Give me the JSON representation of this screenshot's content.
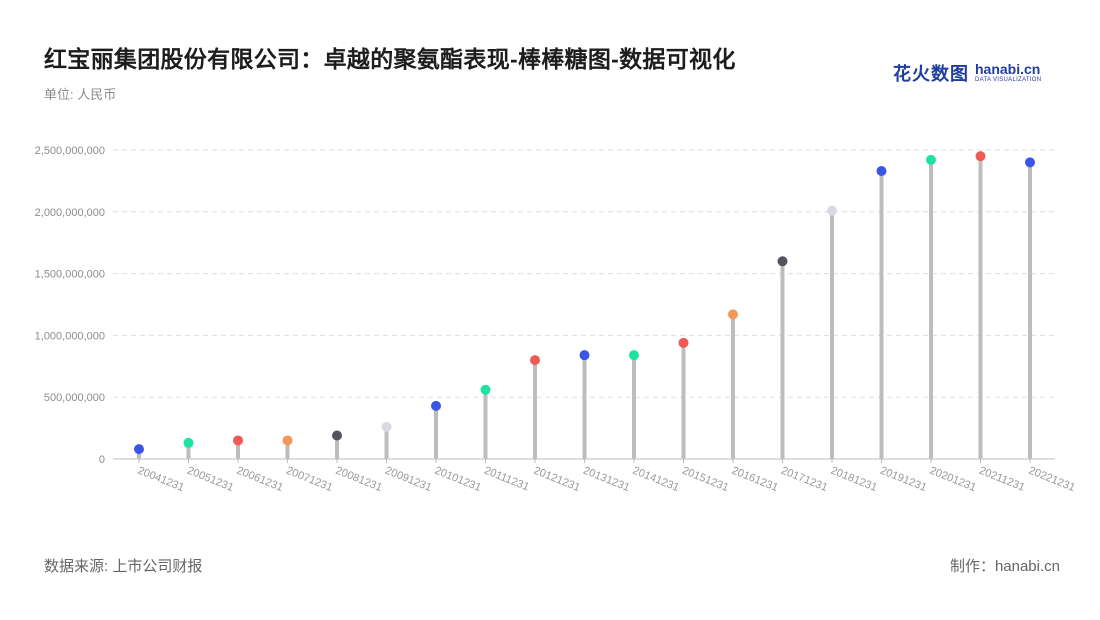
{
  "header": {
    "title": "红宝丽集团股份有限公司：卓越的聚氨酯表现-棒棒糖图-数据可视化",
    "unit": "单位: 人民币"
  },
  "logo": {
    "cn": "花火数图",
    "en": "hanabi.cn",
    "en_sub": "DATA VISUALIZATION"
  },
  "footer": {
    "source": "数据来源: 上市公司财报",
    "credit": "制作：hanabi.cn"
  },
  "chart_data": {
    "type": "lollipop",
    "categories": [
      "20041231",
      "20051231",
      "20061231",
      "20071231",
      "20081231",
      "20091231",
      "20101231",
      "20111231",
      "20121231",
      "20131231",
      "20141231",
      "20151231",
      "20161231",
      "20171231",
      "20181231",
      "20191231",
      "20201231",
      "20211231",
      "20221231"
    ],
    "values": [
      80000000,
      130000000,
      150000000,
      150000000,
      190000000,
      260000000,
      430000000,
      560000000,
      800000000,
      840000000,
      840000000,
      940000000,
      1170000000,
      1600000000,
      2010000000,
      2330000000,
      2420000000,
      2450000000,
      2400000000
    ],
    "point_colors": [
      "#3b55e6",
      "#1ee3a0",
      "#ef5a54",
      "#f4975a",
      "#54545e",
      "#d9dae6",
      "#3b55e6",
      "#1ee3a0",
      "#ef5a54",
      "#3b55e6",
      "#1ee3a0",
      "#ef5a54",
      "#f4975a",
      "#54545e",
      "#d9dae6",
      "#3b55e6",
      "#1ee3a0",
      "#ef5a54",
      "#3b55e6"
    ],
    "stem_color": "#bdbdbd",
    "yticks": [
      "0",
      "500,000,000",
      "1,000,000,000",
      "1,500,000,000",
      "2,000,000,000",
      "2,500,000,000"
    ],
    "ylim": [
      0,
      2500000000
    ],
    "grid": true
  }
}
